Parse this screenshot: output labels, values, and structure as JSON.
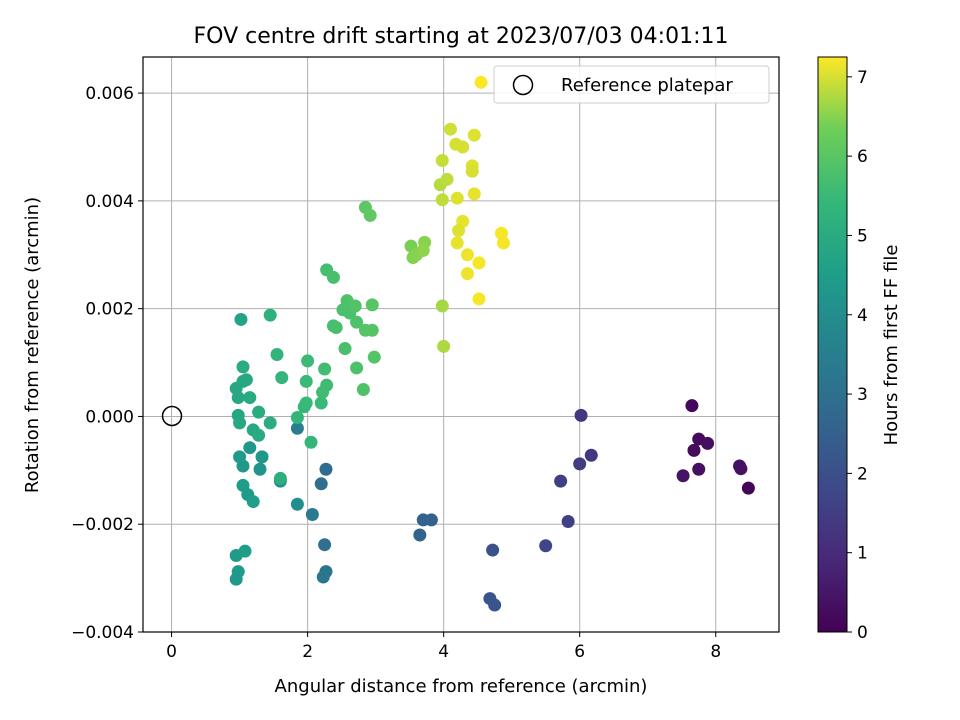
{
  "chart_data": {
    "type": "scatter",
    "title": "FOV centre drift starting at 2023/07/03 04:01:11",
    "xlabel": "Angular distance from reference (arcmin)",
    "ylabel": "Rotation from reference (arcmin)",
    "xlim": [
      -0.42,
      8.93
    ],
    "ylim": [
      -0.004,
      0.00667
    ],
    "xticks": [
      "0",
      "2",
      "4",
      "6",
      "8"
    ],
    "yticks": [
      "−0.004",
      "−0.002",
      "0.000",
      "0.002",
      "0.004",
      "0.006"
    ],
    "grid": true,
    "legend": {
      "placement": "top-right",
      "entries": [
        "Reference platepar"
      ]
    },
    "colorbar": {
      "label": "Hours from first FF file",
      "range": [
        0,
        7.25
      ],
      "ticks": [
        "0",
        "1",
        "2",
        "3",
        "4",
        "5",
        "6",
        "7"
      ],
      "colormap": "viridis"
    },
    "reference_point": {
      "x": 0,
      "y": 0,
      "label": "Reference platepar"
    },
    "series": [
      {
        "points": [
          [
            7.65,
            0.0002,
            0.15
          ],
          [
            7.75,
            -0.00042,
            0.22
          ],
          [
            7.88,
            -0.0005,
            0.3
          ],
          [
            7.68,
            -0.00063,
            0.25
          ],
          [
            7.75,
            -0.00098,
            0.35
          ],
          [
            7.52,
            -0.0011,
            0.45
          ],
          [
            8.35,
            -0.00092,
            0.4
          ],
          [
            8.37,
            -0.00097,
            0.38
          ],
          [
            8.48,
            -0.00133,
            0.1
          ],
          [
            6.02,
            2e-05,
            1.3
          ],
          [
            6.0,
            -0.00088,
            1.45
          ],
          [
            6.17,
            -0.00072,
            1.35
          ],
          [
            5.72,
            -0.0012,
            1.55
          ],
          [
            5.83,
            -0.00195,
            1.6
          ],
          [
            5.5,
            -0.0024,
            1.7
          ],
          [
            4.72,
            -0.00248,
            2.05
          ],
          [
            4.75,
            -0.0035,
            2.15
          ],
          [
            4.68,
            -0.00338,
            2.2
          ],
          [
            3.7,
            -0.00192,
            2.5
          ],
          [
            3.82,
            -0.00192,
            2.55
          ],
          [
            3.65,
            -0.0022,
            2.6
          ],
          [
            2.27,
            -0.00098,
            2.9
          ],
          [
            2.2,
            -0.00125,
            2.95
          ],
          [
            2.25,
            -0.00238,
            3.0
          ],
          [
            2.27,
            -0.00288,
            3.1
          ],
          [
            2.23,
            -0.00298,
            3.2
          ],
          [
            2.07,
            -0.00182,
            3.3
          ],
          [
            1.85,
            -0.00022,
            3.5
          ],
          [
            1.85,
            -0.00163,
            4.05
          ],
          [
            1.6,
            -0.0012,
            4.15
          ],
          [
            1.3,
            -0.00098,
            4.25
          ],
          [
            1.33,
            -0.00075,
            4.3
          ],
          [
            1.15,
            -0.00058,
            4.3
          ],
          [
            1.05,
            -0.00092,
            4.35
          ],
          [
            1.0,
            -0.00075,
            4.4
          ],
          [
            1.12,
            -0.00145,
            4.45
          ],
          [
            1.05,
            -0.00128,
            4.5
          ],
          [
            1.2,
            -0.00158,
            4.55
          ],
          [
            0.95,
            -0.00258,
            4.45
          ],
          [
            0.98,
            -0.00288,
            4.4
          ],
          [
            0.95,
            -0.00302,
            4.35
          ],
          [
            1.08,
            -0.0025,
            4.5
          ],
          [
            1.02,
            0.0018,
            4.75
          ],
          [
            0.95,
            0.00052,
            4.85
          ],
          [
            1.05,
            0.00065,
            4.9
          ],
          [
            1.1,
            0.00068,
            4.9
          ],
          [
            1.05,
            0.00092,
            5.0
          ],
          [
            0.98,
            0.00035,
            4.9
          ],
          [
            1.15,
            0.00035,
            4.95
          ],
          [
            0.98,
            2e-05,
            4.8
          ],
          [
            1.0,
            -0.00012,
            4.85
          ],
          [
            1.2,
            -0.00025,
            4.9
          ],
          [
            1.28,
            -0.00035,
            4.95
          ],
          [
            1.28,
            8e-05,
            5.0
          ],
          [
            1.45,
            -0.00012,
            5.05
          ],
          [
            1.6,
            -0.00115,
            5.1
          ],
          [
            1.45,
            0.00188,
            5.2
          ],
          [
            1.55,
            0.00115,
            5.3
          ],
          [
            1.62,
            0.00072,
            5.35
          ],
          [
            1.85,
            -2e-05,
            5.4
          ],
          [
            1.95,
            0.00018,
            5.45
          ],
          [
            1.98,
            0.00025,
            5.5
          ],
          [
            2.05,
            -0.00048,
            5.4
          ],
          [
            1.98,
            0.00065,
            5.5
          ],
          [
            2.0,
            0.00103,
            5.55
          ],
          [
            2.2,
            0.00025,
            5.5
          ],
          [
            2.28,
            0.00058,
            5.6
          ],
          [
            2.22,
            0.00045,
            5.6
          ],
          [
            2.25,
            0.00088,
            5.65
          ],
          [
            2.28,
            0.00272,
            5.7
          ],
          [
            2.38,
            0.00258,
            5.75
          ],
          [
            2.38,
            0.00168,
            5.7
          ],
          [
            2.42,
            0.00165,
            5.75
          ],
          [
            2.52,
            0.00198,
            5.8
          ],
          [
            2.58,
            0.00215,
            5.85
          ],
          [
            2.62,
            0.00192,
            5.8
          ],
          [
            2.55,
            0.00126,
            5.75
          ],
          [
            2.7,
            0.00205,
            5.9
          ],
          [
            2.72,
            0.00175,
            5.85
          ],
          [
            2.72,
            0.0009,
            5.8
          ],
          [
            2.82,
            0.0005,
            5.85
          ],
          [
            2.85,
            0.0016,
            5.95
          ],
          [
            2.95,
            0.0016,
            5.95
          ],
          [
            2.95,
            0.00207,
            6.0
          ],
          [
            2.98,
            0.0011,
            5.95
          ],
          [
            2.85,
            0.00388,
            6.05
          ],
          [
            2.92,
            0.00373,
            6.1
          ],
          [
            3.52,
            0.00316,
            6.4
          ],
          [
            3.55,
            0.00295,
            6.45
          ],
          [
            3.6,
            0.003,
            6.5
          ],
          [
            3.72,
            0.00323,
            6.5
          ],
          [
            3.7,
            0.00308,
            6.55
          ],
          [
            3.98,
            0.00205,
            6.7
          ],
          [
            4.0,
            0.0013,
            6.75
          ],
          [
            3.95,
            0.0043,
            6.8
          ],
          [
            4.05,
            0.0044,
            6.85
          ],
          [
            3.98,
            0.00402,
            6.85
          ],
          [
            3.98,
            0.00475,
            6.9
          ],
          [
            4.1,
            0.00533,
            6.95
          ],
          [
            4.18,
            0.00505,
            7.0
          ],
          [
            4.28,
            0.005,
            7.0
          ],
          [
            4.45,
            0.00522,
            7.05
          ],
          [
            4.42,
            0.00465,
            7.05
          ],
          [
            4.42,
            0.00455,
            7.0
          ],
          [
            4.2,
            0.00405,
            7.05
          ],
          [
            4.45,
            0.00413,
            7.1
          ],
          [
            4.28,
            0.00362,
            7.1
          ],
          [
            4.22,
            0.00345,
            7.05
          ],
          [
            4.2,
            0.00322,
            7.1
          ],
          [
            4.35,
            0.003,
            7.15
          ],
          [
            4.35,
            0.00265,
            7.15
          ],
          [
            4.52,
            0.00285,
            7.2
          ],
          [
            4.52,
            0.00218,
            7.2
          ],
          [
            4.85,
            0.0034,
            7.2
          ],
          [
            4.88,
            0.00322,
            7.2
          ],
          [
            4.55,
            0.0062,
            7.25
          ]
        ]
      }
    ]
  }
}
